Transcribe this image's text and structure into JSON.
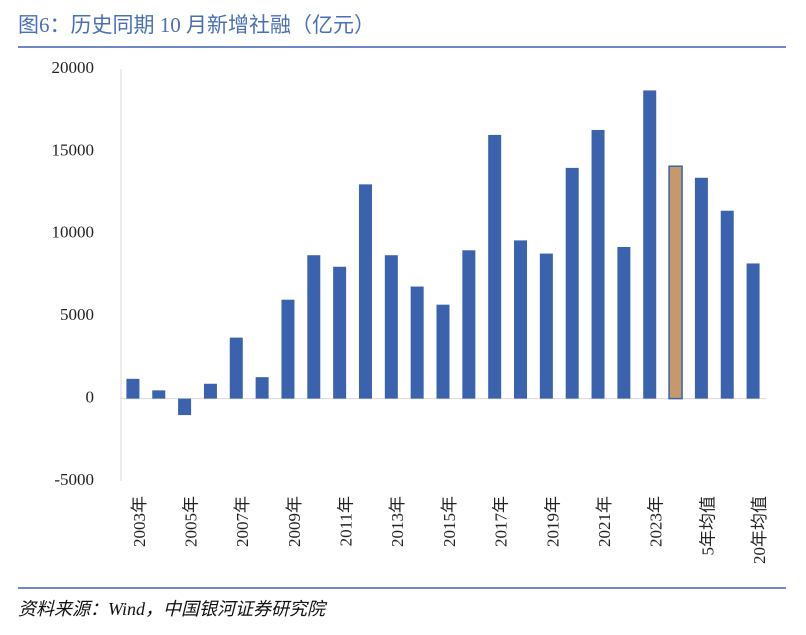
{
  "chart_data": {
    "type": "bar",
    "title": "图6：历史同期 10 月新增社融（亿元）",
    "source": "资料来源：Wind，中国银河证券研究院",
    "categories": [
      "2003年",
      null,
      "2005年",
      null,
      "2007年",
      null,
      "2009年",
      null,
      "2011年",
      null,
      "2013年",
      null,
      "2015年",
      null,
      "2017年",
      null,
      "2019年",
      null,
      "2021年",
      null,
      "2023年",
      null,
      "5年均值",
      null,
      "20年均值"
    ],
    "values": [
      1200,
      500,
      -1000,
      900,
      3700,
      1300,
      6000,
      8700,
      8000,
      13000,
      8700,
      6800,
      5700,
      9000,
      16000,
      9600,
      8800,
      14000,
      16300,
      9200,
      18700,
      14100,
      13400,
      11400,
      8200
    ],
    "colors": [
      "#3a62ad",
      "#3a62ad",
      "#3a62ad",
      "#3a62ad",
      "#3a62ad",
      "#3a62ad",
      "#3a62ad",
      "#3a62ad",
      "#3a62ad",
      "#3a62ad",
      "#3a62ad",
      "#3a62ad",
      "#3a62ad",
      "#3a62ad",
      "#3a62ad",
      "#3a62ad",
      "#3a62ad",
      "#3a62ad",
      "#3a62ad",
      "#3a62ad",
      "#3a62ad",
      "#c49a6c",
      "#3a62ad",
      "#3a62ad",
      "#3a62ad"
    ],
    "ylim": [
      -5000,
      20000
    ],
    "yticks": [
      -5000,
      0,
      5000,
      10000,
      15000,
      20000
    ],
    "grid": false
  }
}
